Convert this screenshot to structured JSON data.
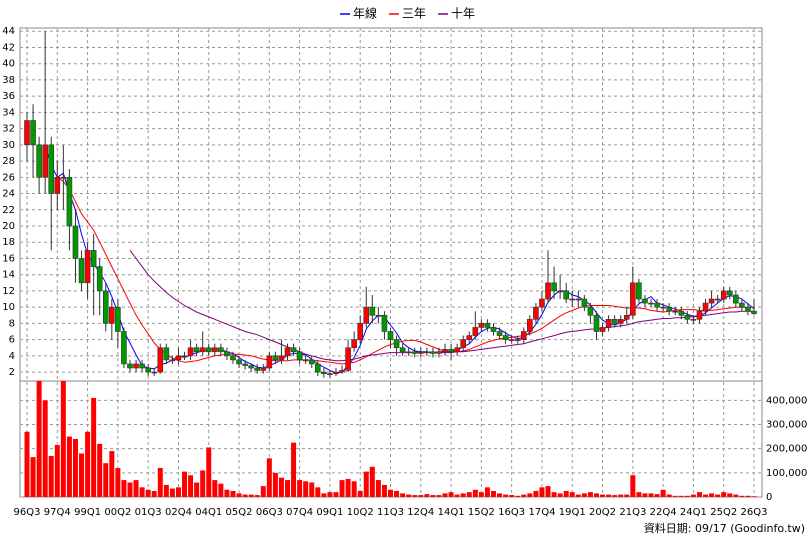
{
  "chart_data": {
    "type": "candlestick",
    "grid": true,
    "categories": [
      "96Q3",
      null,
      null,
      null,
      null,
      "97Q4",
      null,
      null,
      null,
      null,
      "99Q1",
      null,
      null,
      null,
      null,
      "00Q2",
      null,
      null,
      null,
      null,
      "01Q3",
      null,
      null,
      null,
      null,
      "02Q4",
      null,
      null,
      null,
      null,
      "04Q1",
      null,
      null,
      null,
      null,
      "05Q2",
      null,
      null,
      null,
      null,
      "06Q3",
      null,
      null,
      null,
      null,
      "07Q4",
      null,
      null,
      null,
      null,
      "09Q1",
      null,
      null,
      null,
      null,
      "10Q2",
      null,
      null,
      null,
      null,
      "11Q3",
      null,
      null,
      null,
      null,
      "12Q4",
      null,
      null,
      null,
      null,
      "14Q1",
      null,
      null,
      null,
      null,
      "15Q2",
      null,
      null,
      null,
      null,
      "16Q3",
      null,
      null,
      null,
      null,
      "17Q4",
      null,
      null,
      null,
      null,
      "19Q1",
      null,
      null,
      null,
      null,
      "20Q2",
      null,
      null,
      null,
      null,
      "21Q3",
      null,
      null,
      null,
      null,
      "22Q4",
      null,
      null,
      null,
      null,
      "24Q1",
      null,
      null,
      null,
      null,
      "25Q2",
      null,
      null,
      null,
      null,
      "26Q3"
    ],
    "open": [
      30,
      33,
      30,
      26,
      30,
      24,
      26,
      26,
      20,
      16,
      13,
      17,
      15,
      12,
      8,
      10,
      7,
      3,
      2.5,
      3,
      2.5,
      2,
      2,
      5,
      3.5,
      3.5,
      4,
      4,
      5,
      4.5,
      5,
      4.5,
      5,
      4.5,
      4,
      3.5,
      3,
      2.8,
      2.5,
      2.2,
      2.5,
      4,
      3.5,
      4,
      5,
      4.5,
      3.5,
      3.5,
      3,
      2,
      1.8,
      1.8,
      2,
      2.2,
      5,
      6,
      8,
      10,
      9,
      9,
      7,
      6,
      5,
      4.5,
      4.5,
      4.3,
      4.5,
      4.5,
      4.3,
      4.5,
      4.8,
      4.5,
      5,
      6,
      6.5,
      7.5,
      8,
      7.5,
      7,
      6.5,
      6,
      6,
      6,
      7,
      8.5,
      10,
      11,
      13,
      12,
      12,
      11,
      11,
      11,
      10,
      9,
      7,
      7.5,
      8.5,
      8,
      8.5,
      9,
      13,
      11,
      10.5,
      10.5,
      10,
      10,
      9.5,
      9.5,
      9,
      8.5,
      8.5,
      9.5,
      10.5,
      11,
      11,
      12,
      11.5,
      10.5,
      10,
      9.5
    ],
    "high": [
      34,
      35,
      31,
      44,
      31,
      28,
      30,
      27,
      22,
      17,
      18,
      19,
      16,
      13,
      11,
      11,
      7.5,
      3.5,
      3.5,
      3.5,
      3,
      2.5,
      5.5,
      5.5,
      4,
      5,
      4.5,
      6,
      5.5,
      7,
      5.5,
      5.5,
      5.5,
      5,
      4.5,
      4,
      3.5,
      3,
      3,
      3,
      4.5,
      4.5,
      6,
      5.5,
      5.5,
      5,
      4,
      4,
      3.5,
      2.5,
      2.2,
      2.5,
      2.8,
      6,
      7,
      9,
      12.5,
      11.5,
      10,
      9.5,
      7.5,
      6.5,
      5.5,
      5,
      5,
      5,
      5,
      5,
      5,
      5.5,
      5.5,
      5.5,
      6.5,
      7,
      9.5,
      8.5,
      8.5,
      8,
      7.5,
      7,
      6.5,
      6.5,
      7.5,
      9,
      10.5,
      12,
      17,
      15,
      14,
      13,
      12,
      12,
      11.5,
      10.5,
      9.5,
      8,
      9,
      9,
      9,
      10,
      15,
      13.5,
      11.5,
      11,
      11,
      10.5,
      10.5,
      10,
      10,
      9.5,
      9,
      10,
      11,
      12,
      11.5,
      12.5,
      12.5,
      12,
      11,
      10.5,
      11
    ],
    "low": [
      28,
      26,
      24,
      24,
      17,
      22,
      22,
      17,
      13,
      12,
      11,
      9,
      9,
      7,
      6,
      5,
      2.5,
      2,
      2,
      2,
      1.5,
      1.5,
      1.8,
      3,
      3,
      3,
      3.5,
      3.5,
      4,
      4,
      4,
      4,
      4,
      3.5,
      3,
      2.5,
      2.3,
      2,
      1.8,
      1.8,
      2.2,
      3,
      3,
      3.5,
      4,
      3,
      3,
      2.5,
      1.5,
      1.3,
      1.3,
      1.5,
      1.8,
      2,
      4.5,
      5.5,
      7.5,
      8,
      8,
      6,
      5,
      4,
      4,
      4,
      3.8,
      3.8,
      4,
      3.8,
      3.8,
      4,
      3.5,
      4,
      4.5,
      5.5,
      6,
      7,
      7,
      6.5,
      6,
      5.5,
      5.5,
      5.5,
      5.5,
      6.5,
      8,
      9.5,
      10.5,
      11,
      11,
      10.5,
      10,
      10,
      9.5,
      8,
      6,
      6.5,
      7,
      7.5,
      7.5,
      8,
      8.5,
      10.5,
      10,
      10,
      9.5,
      9.5,
      9,
      9,
      8.5,
      8,
      8,
      8,
      9,
      10,
      10.5,
      10.5,
      11,
      10,
      9.5,
      9,
      9
    ],
    "close": [
      33,
      30,
      26,
      30,
      24,
      26,
      26,
      20,
      16,
      13,
      17,
      15,
      12,
      8,
      10,
      7,
      3,
      2.5,
      3,
      2.5,
      2,
      2,
      5,
      3.5,
      3.5,
      4,
      4,
      5,
      4.5,
      5,
      4.5,
      5,
      4.5,
      4,
      3.5,
      3,
      2.8,
      2.5,
      2.2,
      2.5,
      4,
      3.5,
      4,
      5,
      4.5,
      3.5,
      3.5,
      3,
      2,
      1.8,
      1.8,
      2,
      2.2,
      5,
      6,
      8,
      10,
      9,
      9,
      7,
      6,
      5,
      4.5,
      4.5,
      4.3,
      4.5,
      4.5,
      4.3,
      4.5,
      4.8,
      4.5,
      5,
      6,
      6.5,
      7.5,
      8,
      7.5,
      7,
      6.5,
      6,
      6,
      6,
      7,
      8.5,
      10,
      11,
      13,
      12,
      12,
      11,
      11,
      11,
      10,
      9,
      7,
      7.5,
      8.5,
      8,
      8.5,
      9,
      13,
      11,
      10.5,
      10.5,
      10,
      10,
      9.5,
      9.5,
      9,
      8.5,
      8.5,
      9.5,
      10.5,
      11,
      11,
      12,
      11.5,
      10.5,
      10,
      9.5,
      9.2
    ],
    "volume": [
      270000,
      165000,
      480000,
      400000,
      170000,
      215000,
      480000,
      250000,
      240000,
      180000,
      270000,
      410000,
      220000,
      140000,
      190000,
      120000,
      70000,
      60000,
      70000,
      40000,
      30000,
      25000,
      120000,
      50000,
      35000,
      40000,
      105000,
      90000,
      60000,
      110000,
      205000,
      70000,
      55000,
      30000,
      25000,
      15000,
      10000,
      10000,
      8000,
      45000,
      160000,
      100000,
      80000,
      70000,
      225000,
      70000,
      65000,
      60000,
      40000,
      15000,
      20000,
      20000,
      70000,
      75000,
      65000,
      25000,
      105000,
      125000,
      70000,
      50000,
      30000,
      25000,
      15000,
      10000,
      8000,
      8000,
      12000,
      8000,
      8000,
      15000,
      20000,
      10000,
      15000,
      20000,
      30000,
      20000,
      40000,
      25000,
      15000,
      10000,
      8000,
      5000,
      10000,
      15000,
      25000,
      40000,
      45000,
      20000,
      15000,
      25000,
      20000,
      10000,
      15000,
      20000,
      15000,
      10000,
      10000,
      8000,
      10000,
      10000,
      90000,
      20000,
      15000,
      15000,
      12000,
      30000,
      10000,
      5000,
      5000,
      5000,
      10000,
      20000,
      10000,
      15000,
      10000,
      20000,
      15000,
      10000,
      5000,
      5000,
      3000
    ],
    "up_color": "#ff0000",
    "down_color": "#009900",
    "volume_color": "#ff0000",
    "series": [
      {
        "name": "年線",
        "color": "#0000ff",
        "values": [
          null,
          null,
          null,
          29.8,
          27.5,
          26,
          26.5,
          24,
          22,
          19,
          16.5,
          15.3,
          14.3,
          13,
          11.3,
          9.3,
          7,
          5.6,
          4.1,
          2.8,
          2.5,
          2.4,
          2.9,
          3.1,
          3.5,
          4,
          3.8,
          4.1,
          4.4,
          4.6,
          4.8,
          4.8,
          4.8,
          4.5,
          4.3,
          3.8,
          3.3,
          3,
          2.6,
          2.5,
          2.8,
          3.1,
          3.5,
          4.1,
          4.3,
          4.3,
          4.1,
          3.6,
          3,
          2.6,
          2.2,
          1.9,
          2,
          2.8,
          3.8,
          5.3,
          7.3,
          8.3,
          9,
          8.8,
          7.8,
          6.8,
          5.6,
          5,
          4.6,
          4.5,
          4.5,
          4.4,
          4.5,
          4.5,
          4.5,
          4.7,
          5.1,
          5.5,
          6.3,
          7,
          7.4,
          7.5,
          7.3,
          6.8,
          6.4,
          6.1,
          6.3,
          6.9,
          7.9,
          9.1,
          10.6,
          11.5,
          12,
          12,
          11.5,
          11.3,
          10.8,
          10.3,
          9.3,
          8.4,
          8,
          7.8,
          8.1,
          8.5,
          9.6,
          10.4,
          10.9,
          11.3,
          10.5,
          10.3,
          10,
          9.8,
          9.5,
          9.1,
          8.9,
          8.9,
          9.3,
          9.9,
          10.5,
          11.1,
          11.4,
          11.3,
          11,
          10.4,
          9.8
        ]
      },
      {
        "name": "三年",
        "color": "#ff0000",
        "values": [
          null,
          null,
          null,
          null,
          null,
          26,
          25.5,
          24.5,
          23,
          21.5,
          20.5,
          19.5,
          18,
          16.5,
          15,
          13.5,
          12,
          10.5,
          9,
          7.8,
          6.7,
          5.6,
          4.8,
          4.2,
          3.7,
          3.4,
          3.2,
          3.3,
          3.4,
          3.6,
          3.8,
          4,
          4.1,
          4.2,
          4.2,
          4.2,
          4.1,
          4,
          3.8,
          3.6,
          3.5,
          3.4,
          3.4,
          3.4,
          3.5,
          3.5,
          3.5,
          3.5,
          3.4,
          3.3,
          3.2,
          3.1,
          3,
          3.1,
          3.2,
          3.5,
          3.9,
          4.3,
          4.7,
          5.1,
          5.4,
          5.6,
          5.8,
          5.9,
          5.9,
          5.7,
          5.4,
          5.1,
          4.8,
          4.6,
          4.5,
          4.5,
          4.6,
          4.8,
          5.1,
          5.4,
          5.7,
          5.9,
          6.1,
          6.2,
          6.3,
          6.4,
          6.5,
          6.7,
          7,
          7.4,
          7.9,
          8.4,
          8.9,
          9.3,
          9.6,
          9.9,
          10.1,
          10.2,
          10.2,
          10.2,
          10.2,
          10.1,
          10,
          9.9,
          9.9,
          9.9,
          9.8,
          9.6,
          9.5,
          9.4,
          9.5,
          9.6,
          9.7,
          9.7,
          9.7,
          9.6,
          9.6,
          9.6,
          9.7,
          9.8,
          9.9,
          10,
          10,
          10,
          10
        ]
      },
      {
        "name": "十年",
        "color": "#800080",
        "values": [
          null,
          null,
          null,
          null,
          null,
          null,
          null,
          null,
          null,
          null,
          null,
          null,
          null,
          null,
          null,
          null,
          null,
          17,
          16,
          15,
          14,
          13.2,
          12.5,
          11.8,
          11.2,
          10.7,
          10.2,
          9.8,
          9.4,
          9.1,
          8.8,
          8.5,
          8.2,
          7.9,
          7.6,
          7.3,
          7,
          6.8,
          6.6,
          6.3,
          6,
          5.7,
          5.4,
          5.1,
          4.8,
          4.5,
          4.2,
          4,
          3.8,
          3.6,
          3.5,
          3.4,
          3.4,
          3.5,
          3.6,
          3.8,
          4,
          4.1,
          4.2,
          4.3,
          4.4,
          4.4,
          4.4,
          4.4,
          4.4,
          4.4,
          4.4,
          4.4,
          4.4,
          4.4,
          4.4,
          4.5,
          4.5,
          4.6,
          4.7,
          4.8,
          4.9,
          5,
          5.1,
          5.2,
          5.3,
          5.4,
          5.5,
          5.7,
          5.9,
          6.1,
          6.3,
          6.5,
          6.7,
          6.9,
          7,
          7.1,
          7.2,
          7.3,
          7.3,
          7.4,
          7.5,
          7.6,
          7.7,
          7.8,
          8,
          8.2,
          8.3,
          8.4,
          8.5,
          8.6,
          8.6,
          8.7,
          8.7,
          8.8,
          8.8,
          8.9,
          9,
          9.1,
          9.2,
          9.3,
          9.4,
          9.4,
          9.5,
          9.5,
          9.5
        ]
      }
    ],
    "ylim": [
      0.9,
      44.4
    ],
    "yticks": [
      2,
      4,
      6,
      8,
      10,
      12,
      14,
      16,
      18,
      20,
      22,
      24,
      26,
      28,
      30,
      32,
      34,
      36,
      38,
      40,
      42,
      44
    ],
    "volume_ylim": [
      0,
      480000
    ],
    "volume_ticks": [
      0,
      {
        "value": 100000,
        "label": "100,000"
      },
      {
        "value": 200000,
        "label": "200,000"
      },
      {
        "value": 300000,
        "label": "300,000"
      },
      {
        "value": 400000,
        "label": "400,000"
      }
    ],
    "source": "資料日期: 09/17  (Goodinfo.tw)"
  }
}
